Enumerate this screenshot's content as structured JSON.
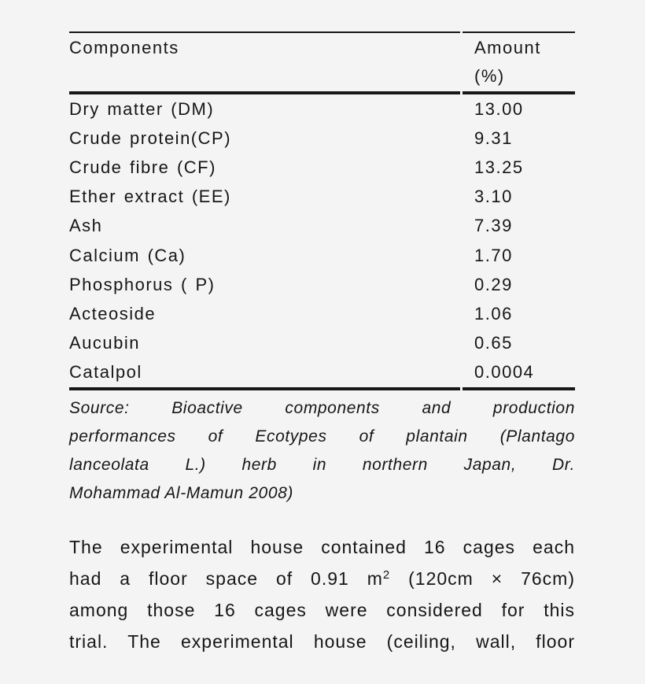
{
  "table": {
    "header": {
      "components_label": "Components",
      "amount_label": "Amount",
      "amount_unit": "(%)"
    },
    "rows": [
      {
        "component": "Dry matter (DM)",
        "amount": "13.00"
      },
      {
        "component": "Crude protein(CP)",
        "amount": "9.31"
      },
      {
        "component": "Crude fibre (CF)",
        "amount": "13.25"
      },
      {
        "component": "Ether extract (EE)",
        "amount": "3.10"
      },
      {
        "component": "Ash",
        "amount": "7.39"
      },
      {
        "component": "Calcium (Ca)",
        "amount": "1.70"
      },
      {
        "component": "Phosphorus ( P)",
        "amount": "0.29"
      },
      {
        "component": "Acteoside",
        "amount": "1.06"
      },
      {
        "component": "Aucubin",
        "amount": "0.65"
      },
      {
        "component": "Catalpol",
        "amount": "0.0004"
      }
    ],
    "source_note": {
      "lines": [
        "Source: Bioactive components and production",
        "performances of Ecotypes of plantain (Plantago",
        "lanceolata L.) herb in northern Japan, Dr.",
        "Mohammad Al-Mamun 2008)"
      ]
    }
  },
  "paragraph": {
    "lines": [
      {
        "pre": "The experimental house contained 16 cages each"
      },
      {
        "pre": "had a floor space of 0.91 m",
        "sup": "2",
        "post": " (120cm × 76cm)"
      },
      {
        "pre": "among those 16 cages were considered for this"
      },
      {
        "pre": "trial. The experimental house (ceiling, wall, floor"
      }
    ]
  },
  "colors": {
    "background": "#f4f4f4",
    "text": "#161616",
    "rule": "#171717"
  }
}
